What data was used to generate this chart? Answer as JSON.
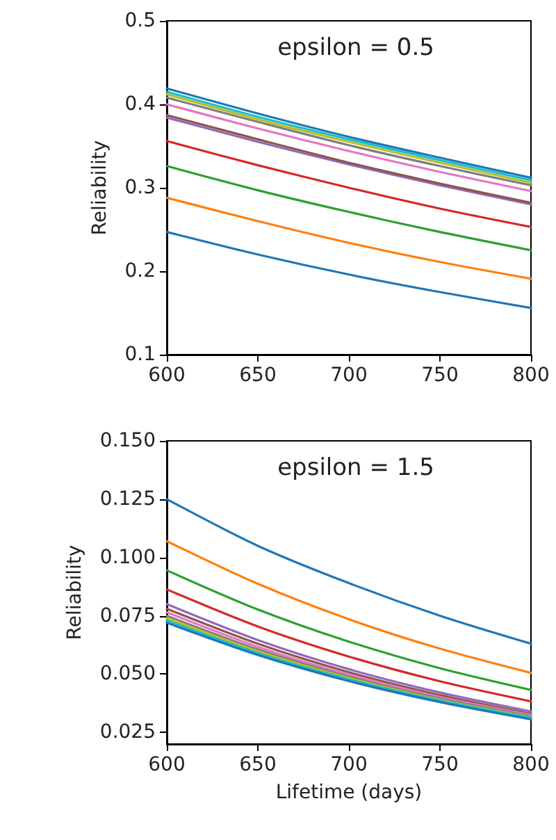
{
  "chart_data": [
    {
      "type": "line",
      "title": "epsilon = 0.5",
      "ylabel": "Reliability",
      "x": [
        600,
        650,
        700,
        750,
        800
      ],
      "xlim": [
        600,
        800
      ],
      "xticks": [
        600,
        650,
        700,
        750,
        800
      ],
      "ylim": [
        0.1,
        0.5
      ],
      "yticks": [
        0.1,
        0.2,
        0.3,
        0.4,
        0.5
      ],
      "marker": "none",
      "series": [
        {
          "color": "#1f77b4",
          "values": [
            0.247,
            0.22,
            0.196,
            0.175,
            0.156
          ]
        },
        {
          "color": "#ff7f0e",
          "values": [
            0.288,
            0.26,
            0.234,
            0.211,
            0.191
          ]
        },
        {
          "color": "#2ca02c",
          "values": [
            0.326,
            0.297,
            0.271,
            0.247,
            0.225
          ]
        },
        {
          "color": "#d62728",
          "values": [
            0.356,
            0.327,
            0.3,
            0.275,
            0.253
          ]
        },
        {
          "color": "#9467bd",
          "values": [
            0.384,
            0.355,
            0.328,
            0.303,
            0.28
          ]
        },
        {
          "color": "#8c564b",
          "values": [
            0.387,
            0.358,
            0.33,
            0.305,
            0.282
          ]
        },
        {
          "color": "#e377c2",
          "values": [
            0.4,
            0.371,
            0.344,
            0.319,
            0.296
          ]
        },
        {
          "color": "#7f7f7f",
          "values": [
            0.408,
            0.379,
            0.351,
            0.326,
            0.303
          ]
        },
        {
          "color": "#bcbd22",
          "values": [
            0.412,
            0.382,
            0.355,
            0.33,
            0.306
          ]
        },
        {
          "color": "#17becf",
          "values": [
            0.415,
            0.385,
            0.358,
            0.333,
            0.309
          ]
        },
        {
          "color": "#1f77b4",
          "values": [
            0.419,
            0.389,
            0.361,
            0.336,
            0.312
          ]
        }
      ]
    },
    {
      "type": "line",
      "title": "epsilon = 1.5",
      "xlabel": "Lifetime (days)",
      "ylabel": "Reliability",
      "x": [
        600,
        650,
        700,
        750,
        800
      ],
      "xlim": [
        600,
        800
      ],
      "xticks": [
        600,
        650,
        700,
        750,
        800
      ],
      "ylim": [
        0.02,
        0.15
      ],
      "yticks": [
        {
          "value": 0.025,
          "label": "0.025"
        },
        {
          "value": 0.05,
          "label": "0.050"
        },
        {
          "value": 0.075,
          "label": "0.075"
        },
        {
          "value": 0.1,
          "label": "0.100"
        },
        {
          "value": 0.125,
          "label": "0.125"
        },
        {
          "value": 0.15,
          "label": "0.150"
        }
      ],
      "marker": "none",
      "series": [
        {
          "color": "#1f77b4",
          "values": [
            0.125,
            0.105,
            0.089,
            0.075,
            0.063
          ]
        },
        {
          "color": "#ff7f0e",
          "values": [
            0.107,
            0.0887,
            0.0735,
            0.0609,
            0.0505
          ]
        },
        {
          "color": "#2ca02c",
          "values": [
            0.0945,
            0.0777,
            0.0639,
            0.0525,
            0.0432
          ]
        },
        {
          "color": "#d62728",
          "values": [
            0.0863,
            0.0704,
            0.0575,
            0.0469,
            0.0383
          ]
        },
        {
          "color": "#9467bd",
          "values": [
            0.08,
            0.0646,
            0.0521,
            0.0421,
            0.034
          ]
        },
        {
          "color": "#8c564b",
          "values": [
            0.078,
            0.063,
            0.0508,
            0.041,
            0.033
          ]
        },
        {
          "color": "#e377c2",
          "values": [
            0.0765,
            0.0617,
            0.0498,
            0.0402,
            0.0325
          ]
        },
        {
          "color": "#7f7f7f",
          "values": [
            0.075,
            0.0606,
            0.0489,
            0.0395,
            0.032
          ]
        },
        {
          "color": "#bcbd22",
          "values": [
            0.074,
            0.0598,
            0.0483,
            0.039,
            0.0316
          ]
        },
        {
          "color": "#17becf",
          "values": [
            0.073,
            0.059,
            0.0477,
            0.0386,
            0.0313
          ]
        },
        {
          "color": "#1f77b4",
          "values": [
            0.072,
            0.0582,
            0.047,
            0.038,
            0.0306
          ]
        }
      ]
    }
  ]
}
